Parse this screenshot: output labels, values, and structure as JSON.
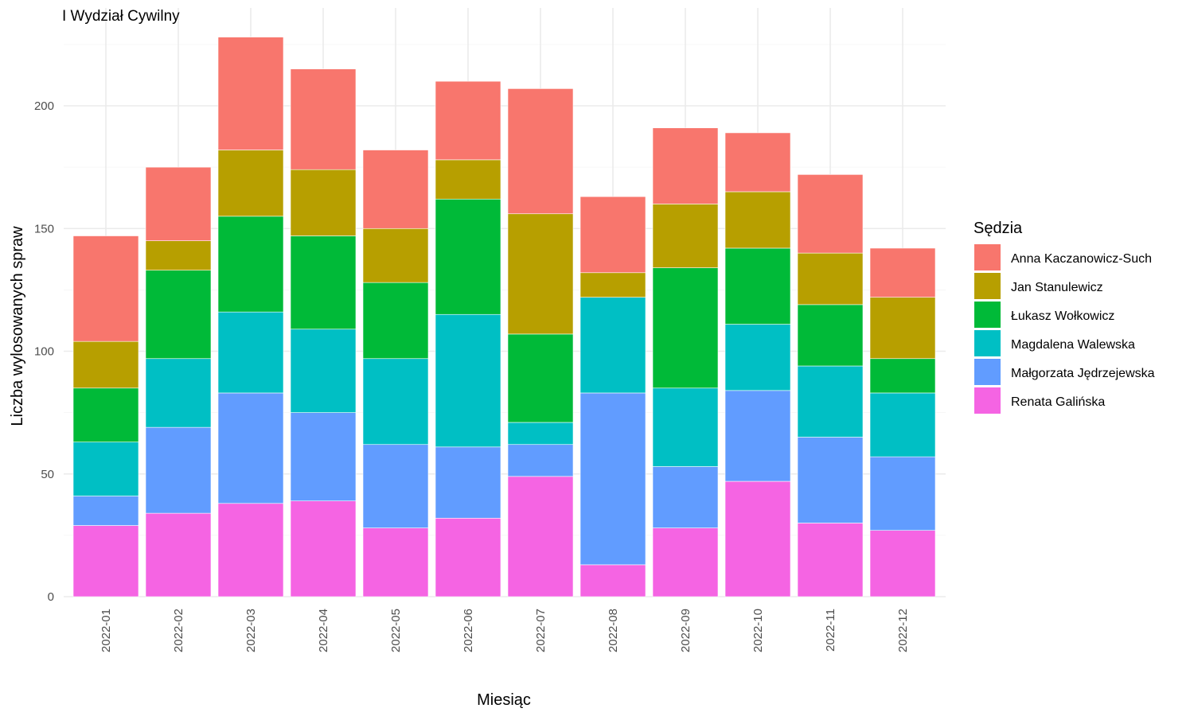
{
  "chart_data": {
    "type": "bar",
    "stacked": true,
    "title": "I Wydział Cywilny",
    "xlabel": "Miesiąc",
    "ylabel": "Liczba wylosowanych spraw",
    "ylim": [
      0,
      230
    ],
    "yticks": [
      0,
      50,
      100,
      150,
      200
    ],
    "grid": true,
    "legend_title": "Sędzia",
    "legend_position": "right",
    "categories": [
      "2022-01",
      "2022-02",
      "2022-03",
      "2022-04",
      "2022-05",
      "2022-06",
      "2022-07",
      "2022-08",
      "2022-09",
      "2022-10",
      "2022-11",
      "2022-12"
    ],
    "series": [
      {
        "name": "Renata Galińska",
        "color": "#F564E3",
        "values": [
          29,
          34,
          38,
          39,
          28,
          32,
          49,
          13,
          28,
          47,
          30,
          27
        ]
      },
      {
        "name": "Małgorzata Jędrzejewska",
        "color": "#619CFF",
        "values": [
          12,
          35,
          45,
          36,
          34,
          29,
          13,
          70,
          25,
          37,
          35,
          30
        ]
      },
      {
        "name": "Magdalena Walewska",
        "color": "#00BFC4",
        "values": [
          22,
          28,
          33,
          34,
          35,
          54,
          9,
          39,
          32,
          27,
          29,
          26
        ]
      },
      {
        "name": "Łukasz Wołkowicz",
        "color": "#00BA38",
        "values": [
          22,
          36,
          39,
          38,
          31,
          47,
          36,
          0,
          49,
          31,
          25,
          14
        ]
      },
      {
        "name": "Jan Stanulewicz",
        "color": "#B79F00",
        "values": [
          19,
          12,
          27,
          27,
          22,
          16,
          49,
          10,
          26,
          23,
          21,
          25
        ]
      },
      {
        "name": "Anna Kaczanowicz-Such",
        "color": "#F8766D",
        "values": [
          43,
          30,
          46,
          41,
          32,
          32,
          51,
          31,
          31,
          24,
          32,
          20
        ]
      }
    ],
    "legend_order": [
      "Anna Kaczanowicz-Such",
      "Jan Stanulewicz",
      "Łukasz Wołkowicz",
      "Magdalena Walewska",
      "Małgorzata Jędrzejewska",
      "Renata Galińska"
    ]
  }
}
